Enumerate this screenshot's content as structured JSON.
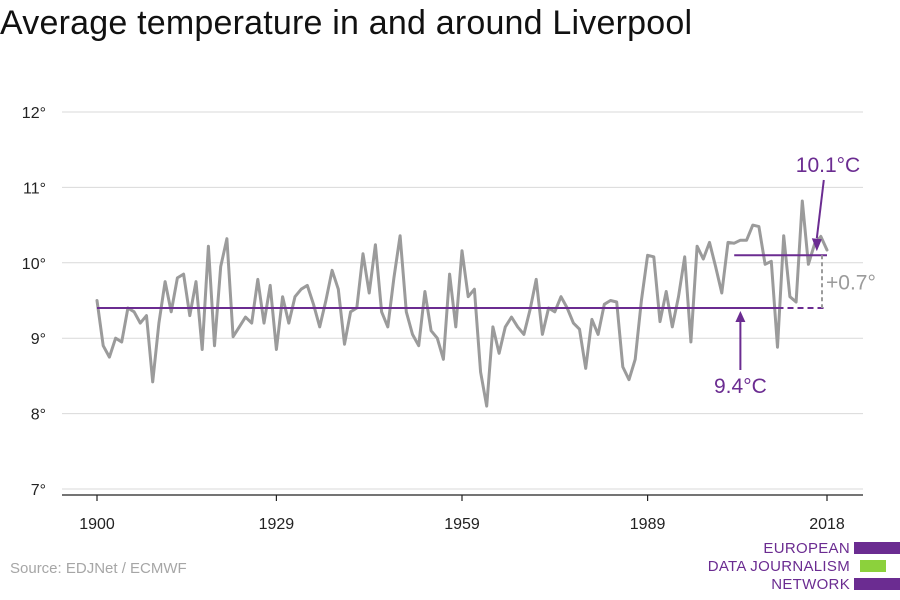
{
  "title": "Average temperature in and around Liverpool",
  "source": "Source: EDJNet / ECMWF",
  "logo": {
    "line1": "EUROPEAN",
    "line2": "DATA JOURNALISM",
    "line3": "NETWORK"
  },
  "colors": {
    "series": "#9b9b9b",
    "accent": "#6b2c91",
    "logo_green": "#8cd13c",
    "grid": "#d9d9d9"
  },
  "chart_data": {
    "type": "line",
    "title": "Average temperature in and around Liverpool",
    "xlabel": "",
    "ylabel": "",
    "xlim": [
      1900,
      2018
    ],
    "ylim": [
      7,
      12
    ],
    "y_ticks": [
      7,
      8,
      9,
      10,
      11,
      12
    ],
    "y_tick_labels": [
      "7°",
      "8°",
      "9°",
      "10°",
      "11°",
      "12°"
    ],
    "x_ticks": [
      1900,
      1929,
      1959,
      1989,
      2018
    ],
    "x_tick_labels": [
      "1900",
      "1929",
      "1959",
      "1989",
      "2018"
    ],
    "grid": "horizontal",
    "series": [
      {
        "x": [
          1900,
          1901,
          1902,
          1903,
          1904,
          1905,
          1906,
          1907,
          1908,
          1909,
          1910,
          1911,
          1912,
          1913,
          1914,
          1915,
          1916,
          1917,
          1918,
          1919,
          1920,
          1921,
          1922,
          1923,
          1924,
          1925,
          1926,
          1927,
          1928,
          1929,
          1930,
          1931,
          1932,
          1933,
          1934,
          1935,
          1936,
          1937,
          1938,
          1939,
          1940,
          1941,
          1942,
          1943,
          1944,
          1945,
          1946,
          1947,
          1948,
          1949,
          1950,
          1951,
          1952,
          1953,
          1954,
          1955,
          1956,
          1957,
          1958,
          1959,
          1960,
          1961,
          1962,
          1963,
          1964,
          1965,
          1966,
          1967,
          1968,
          1969,
          1970,
          1971,
          1972,
          1973,
          1974,
          1975,
          1976,
          1977,
          1978,
          1979,
          1980,
          1981,
          1982,
          1983,
          1984,
          1985,
          1986,
          1987,
          1988,
          1989,
          1990,
          1991,
          1992,
          1993,
          1994,
          1995,
          1996,
          1997,
          1998,
          1999,
          2000,
          2001,
          2002,
          2003,
          2004,
          2005,
          2006,
          2007,
          2008,
          2009,
          2010,
          2011,
          2012,
          2013,
          2014,
          2015,
          2016,
          2017,
          2018
        ],
        "y": [
          9.5,
          8.9,
          8.75,
          9.0,
          8.95,
          9.4,
          9.35,
          9.2,
          9.3,
          8.42,
          9.2,
          9.75,
          9.35,
          9.8,
          9.85,
          9.3,
          9.75,
          8.85,
          10.22,
          8.9,
          9.95,
          10.32,
          9.02,
          9.15,
          9.28,
          9.2,
          9.78,
          9.2,
          9.7,
          8.85,
          9.55,
          9.2,
          9.55,
          9.65,
          9.7,
          9.45,
          9.15,
          9.5,
          9.9,
          9.65,
          8.92,
          9.35,
          9.4,
          10.12,
          9.6,
          10.24,
          9.35,
          9.15,
          9.8,
          10.36,
          9.35,
          9.05,
          8.9,
          9.62,
          9.1,
          9.0,
          8.72,
          9.85,
          9.15,
          10.16,
          9.55,
          9.65,
          8.55,
          8.1,
          9.15,
          8.8,
          9.15,
          9.28,
          9.15,
          9.05,
          9.38,
          9.78,
          9.05,
          9.4,
          9.35,
          9.55,
          9.4,
          9.2,
          9.12,
          8.6,
          9.25,
          9.05,
          9.45,
          9.5,
          9.48,
          8.62,
          8.45,
          8.72,
          9.5,
          10.1,
          10.08,
          9.22,
          9.62,
          9.15,
          9.55,
          10.08,
          8.95,
          10.22,
          10.05,
          10.27,
          9.95,
          9.6,
          10.27,
          10.26,
          10.3,
          10.3,
          10.5,
          10.48,
          9.98,
          10.02,
          8.88,
          10.36,
          9.55,
          9.48,
          10.82,
          9.98,
          10.25,
          10.35,
          10.17
        ]
      }
    ],
    "annotations": [
      {
        "label": "9.4°C",
        "value": 9.4,
        "from": 1900,
        "to": 2018,
        "solid_to": 2010
      },
      {
        "label": "10.1°C",
        "value": 10.1,
        "from": 2003,
        "to": 2018
      },
      {
        "label": "+0.7°",
        "from_value": 9.4,
        "to_value": 10.1,
        "at": 2018
      }
    ]
  }
}
